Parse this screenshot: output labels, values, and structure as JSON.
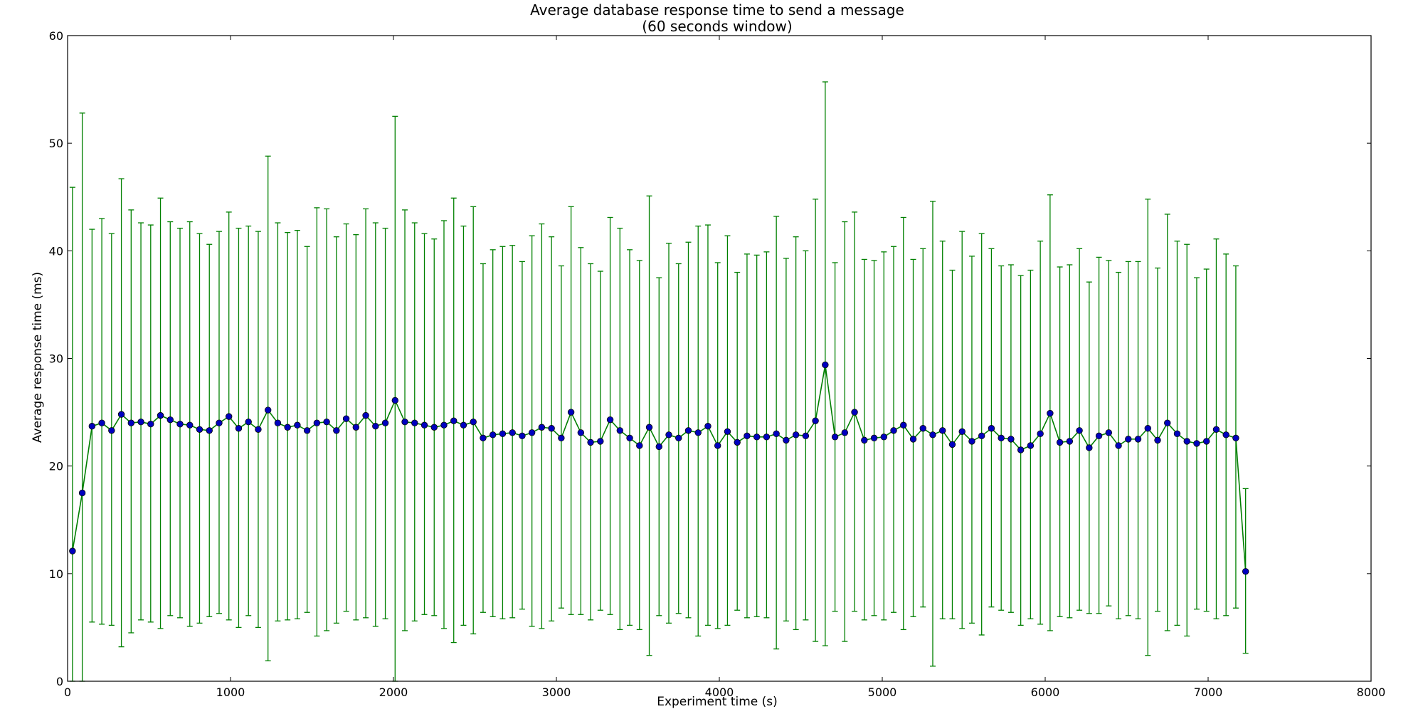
{
  "chart_data": {
    "type": "line",
    "title": "Average database response time to send a message",
    "subtitle": "(60 seconds window)",
    "xlabel": "Experiment time (s)",
    "ylabel": "Average response time (ms)",
    "xlim": [
      0,
      8000
    ],
    "ylim": [
      0,
      60
    ],
    "xticks": [
      0,
      1000,
      2000,
      3000,
      4000,
      5000,
      6000,
      7000,
      8000
    ],
    "yticks": [
      0,
      10,
      20,
      30,
      40,
      50,
      60
    ],
    "grid": false,
    "legend": "none",
    "line_color": "#007f00",
    "marker_color": "#0000bf",
    "errorbar_color": "#008000",
    "series": [
      {
        "x": [
          30,
          90,
          150,
          210,
          270,
          330,
          390,
          450,
          510,
          570,
          630,
          690,
          750,
          810,
          870,
          930,
          990,
          1050,
          1110,
          1170,
          1230,
          1290,
          1350,
          1410,
          1470,
          1530,
          1590,
          1650,
          1710,
          1770,
          1830,
          1890,
          1950,
          2010,
          2070,
          2130,
          2190,
          2250,
          2310,
          2370,
          2430,
          2490,
          2550,
          2610,
          2670,
          2730,
          2790,
          2850,
          2910,
          2970,
          3030,
          3090,
          3150,
          3210,
          3270,
          3330,
          3390,
          3450,
          3510,
          3570,
          3630,
          3690,
          3750,
          3810,
          3870,
          3930,
          3990,
          4050,
          4110,
          4170,
          4230,
          4290,
          4350,
          4410,
          4470,
          4530,
          4590,
          4650,
          4710,
          4770,
          4830,
          4890,
          4950,
          5010,
          5070,
          5130,
          5190,
          5250,
          5310,
          5370,
          5430,
          5490,
          5550,
          5610,
          5670,
          5730,
          5790,
          5850,
          5910,
          5970,
          6030,
          6090,
          6150,
          6210,
          6270,
          6330,
          6390,
          6450,
          6510,
          6570,
          6630,
          6690,
          6750,
          6810,
          6870,
          6930,
          6990,
          7050,
          7110,
          7170,
          7230
        ],
        "y": [
          12.1,
          17.5,
          23.7,
          24.0,
          23.3,
          24.8,
          24.0,
          24.1,
          23.9,
          24.7,
          24.3,
          23.9,
          23.8,
          23.4,
          23.3,
          24.0,
          24.6,
          23.5,
          24.1,
          23.4,
          25.2,
          24.0,
          23.6,
          23.8,
          23.3,
          24.0,
          24.1,
          23.3,
          24.4,
          23.6,
          24.7,
          23.7,
          24.0,
          26.1,
          24.1,
          24.0,
          23.8,
          23.6,
          23.8,
          24.2,
          23.8,
          24.1,
          22.6,
          22.9,
          23.0,
          23.1,
          22.8,
          23.1,
          23.6,
          23.5,
          22.6,
          25.0,
          23.1,
          22.2,
          22.3,
          24.3,
          23.3,
          22.6,
          21.9,
          23.6,
          21.8,
          22.9,
          22.6,
          23.3,
          23.1,
          23.7,
          21.9,
          23.2,
          22.2,
          22.8,
          22.7,
          22.7,
          23.0,
          22.4,
          22.9,
          22.8,
          24.2,
          29.4,
          22.7,
          23.1,
          25.0,
          22.4,
          22.6,
          22.7,
          23.3,
          23.8,
          22.5,
          23.5,
          22.9,
          23.3,
          22.0,
          23.2,
          22.3,
          22.8,
          23.5,
          22.6,
          22.5,
          21.5,
          21.9,
          23.0,
          24.9,
          22.2,
          22.3,
          23.3,
          21.7,
          22.8,
          23.1,
          21.9,
          22.5,
          22.5,
          23.5,
          22.4,
          24.0,
          23.0,
          22.3,
          22.1,
          22.3,
          23.4,
          22.9,
          22.6,
          10.2
        ],
        "yerr_low": [
          0.0,
          0.0,
          5.5,
          5.3,
          5.2,
          3.2,
          4.5,
          5.7,
          5.5,
          4.9,
          6.1,
          5.9,
          5.1,
          5.4,
          6.0,
          6.3,
          5.7,
          5.0,
          6.1,
          5.0,
          1.9,
          5.6,
          5.7,
          5.8,
          6.4,
          4.2,
          4.7,
          5.4,
          6.5,
          5.7,
          5.9,
          5.1,
          5.8,
          0.0,
          4.7,
          5.6,
          6.2,
          6.1,
          4.9,
          3.6,
          5.2,
          4.4,
          6.4,
          6.0,
          5.8,
          5.9,
          6.7,
          5.1,
          4.9,
          5.6,
          6.8,
          6.2,
          6.2,
          5.7,
          6.6,
          6.2,
          4.8,
          5.2,
          4.8,
          2.4,
          6.1,
          5.4,
          6.3,
          5.9,
          4.2,
          5.2,
          4.9,
          5.2,
          6.6,
          5.9,
          6.0,
          5.9,
          3.0,
          5.6,
          4.8,
          5.7,
          3.7,
          3.3,
          6.5,
          3.7,
          6.5,
          5.7,
          6.1,
          5.7,
          6.4,
          4.8,
          6.0,
          6.9,
          1.4,
          5.8,
          5.8,
          4.9,
          5.4,
          4.3,
          6.9,
          6.6,
          6.4,
          5.2,
          5.8,
          5.3,
          4.7,
          6.0,
          5.9,
          6.6,
          6.3,
          6.3,
          7.0,
          5.8,
          6.1,
          5.8,
          2.4,
          6.5,
          4.7,
          5.2,
          4.2,
          6.7,
          6.5,
          5.8,
          6.1,
          6.8,
          2.6
        ],
        "yerr_high": [
          45.9,
          52.8,
          42.0,
          43.0,
          41.6,
          46.7,
          43.8,
          42.6,
          42.4,
          44.9,
          42.7,
          42.1,
          42.7,
          41.6,
          40.6,
          41.8,
          43.6,
          42.1,
          42.3,
          41.8,
          48.8,
          42.6,
          41.7,
          41.9,
          40.4,
          44.0,
          43.9,
          41.3,
          42.5,
          41.5,
          43.9,
          42.6,
          42.1,
          52.5,
          43.8,
          42.6,
          41.6,
          41.1,
          42.8,
          44.9,
          42.3,
          44.1,
          38.8,
          40.1,
          40.4,
          40.5,
          39.0,
          41.4,
          42.5,
          41.3,
          38.6,
          44.1,
          40.3,
          38.8,
          38.1,
          43.1,
          42.1,
          40.1,
          39.1,
          45.1,
          37.5,
          40.7,
          38.8,
          40.8,
          42.3,
          42.4,
          38.9,
          41.4,
          38.0,
          39.7,
          39.6,
          39.9,
          43.2,
          39.3,
          41.3,
          40.0,
          44.8,
          55.7,
          38.9,
          42.7,
          43.6,
          39.2,
          39.1,
          39.9,
          40.4,
          43.1,
          39.2,
          40.2,
          44.6,
          40.9,
          38.2,
          41.8,
          39.5,
          41.6,
          40.2,
          38.6,
          38.7,
          37.7,
          38.2,
          40.9,
          45.2,
          38.5,
          38.7,
          40.2,
          37.1,
          39.4,
          39.1,
          38.0,
          39.0,
          39.0,
          44.8,
          38.4,
          43.4,
          40.9,
          40.6,
          37.5,
          38.3,
          41.1,
          39.7,
          38.6,
          17.9
        ]
      }
    ]
  }
}
